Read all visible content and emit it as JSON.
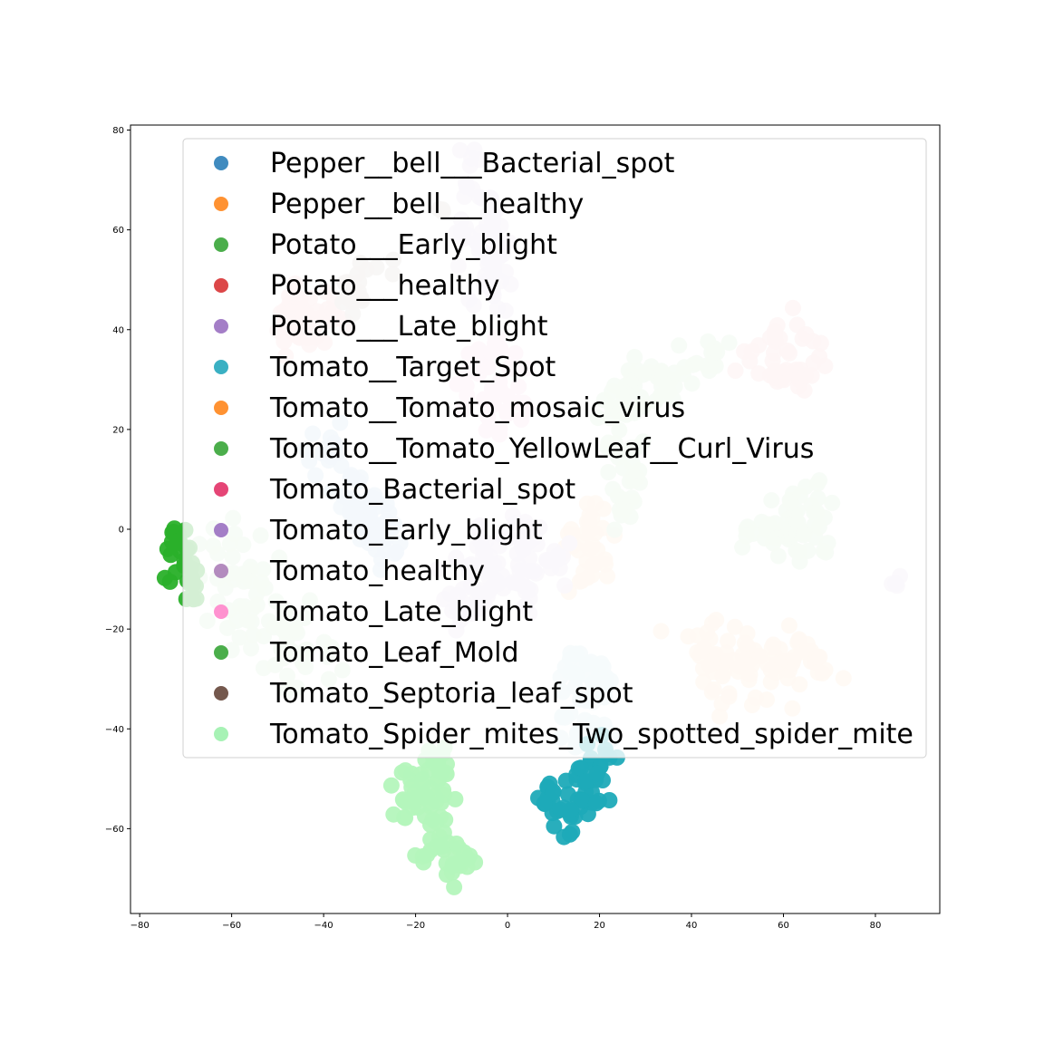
{
  "chart_data": {
    "type": "scatter",
    "title": "",
    "xlabel": "",
    "ylabel": "",
    "xlim": [
      -82,
      94
    ],
    "ylim": [
      -77,
      81
    ],
    "xticks": [
      -80,
      -60,
      -40,
      -20,
      0,
      20,
      40,
      60,
      80
    ],
    "yticks": [
      -60,
      -40,
      -20,
      0,
      20,
      40,
      60,
      80
    ],
    "xtick_labels": [
      "−80",
      "−60",
      "−40",
      "−20",
      "0",
      "20",
      "40",
      "60",
      "80"
    ],
    "ytick_labels": [
      "−60",
      "−40",
      "−20",
      "0",
      "20",
      "40",
      "60",
      "80"
    ],
    "grid": false,
    "legend_position": "upper-center",
    "legend": [
      {
        "name": "Pepper__bell___Bacterial_spot",
        "color": "#1f77b4"
      },
      {
        "name": "Pepper__bell___healthy",
        "color": "#ff7f0e"
      },
      {
        "name": "Potato___Early_blight",
        "color": "#2ca02c"
      },
      {
        "name": "Potato___healthy",
        "color": "#d62728"
      },
      {
        "name": "Potato___Late_blight",
        "color": "#9467bd"
      },
      {
        "name": "Tomato__Target_Spot",
        "color": "#17a2b8"
      },
      {
        "name": "Tomato__Tomato_mosaic_virus",
        "color": "#ff7f0e"
      },
      {
        "name": "Tomato__Tomato_YellowLeaf__Curl_Virus",
        "color": "#2ca02c"
      },
      {
        "name": "Tomato_Bacterial_spot",
        "color": "#e0245e"
      },
      {
        "name": "Tomato_Early_blight",
        "color": "#9467bd"
      },
      {
        "name": "Tomato_healthy",
        "color": "#a777b4"
      },
      {
        "name": "Tomato_Late_blight",
        "color": "#ff7fc8"
      },
      {
        "name": "Tomato_Leaf_Mold",
        "color": "#2ca02c"
      },
      {
        "name": "Tomato_Septoria_leaf_spot",
        "color": "#5c3b2e"
      },
      {
        "name": "Tomato_Spider_mites_Two_spotted_spider_mite",
        "color": "#98f0a8"
      }
    ],
    "clusters": [
      {
        "color": "#c6dcec",
        "alpha": 0.9,
        "n": 70,
        "seed": 1,
        "points": [
          [
            -40,
            15
          ],
          [
            -36,
            12
          ],
          [
            -33,
            7
          ],
          [
            -31,
            3
          ],
          [
            -29,
            0
          ],
          [
            -27,
            -3
          ]
        ],
        "spread": [
          2.5,
          2.5
        ]
      },
      {
        "color": "#ffe0c4",
        "alpha": 0.9,
        "n": 90,
        "seed": 2,
        "points": [
          [
            44,
            -22
          ],
          [
            48,
            -27
          ],
          [
            53,
            -25
          ],
          [
            58,
            -28
          ],
          [
            62,
            -25
          ],
          [
            66,
            -28
          ],
          [
            48,
            -32
          ]
        ],
        "spread": [
          3.5,
          3.0
        ]
      },
      {
        "color": "#ffe0c4",
        "alpha": 0.9,
        "n": 35,
        "seed": 3,
        "points": [
          [
            14,
            -3
          ],
          [
            18,
            -5
          ],
          [
            20,
            -8
          ],
          [
            18,
            2
          ],
          [
            22,
            0
          ],
          [
            16,
            -10
          ]
        ],
        "spread": [
          2.2,
          2.2
        ]
      },
      {
        "color": "#d4ecd0",
        "alpha": 0.9,
        "n": 80,
        "seed": 4,
        "points": [
          [
            -68,
            -2
          ],
          [
            -63,
            -8
          ],
          [
            -58,
            -5
          ],
          [
            -55,
            -14
          ],
          [
            -50,
            -18
          ],
          [
            -46,
            -24
          ],
          [
            -40,
            -24
          ],
          [
            -48,
            -28
          ],
          [
            -56,
            -22
          ]
        ],
        "spread": [
          3.5,
          3.5
        ]
      },
      {
        "color": "#d4ecd0",
        "alpha": 0.9,
        "n": 90,
        "seed": 5,
        "points": [
          [
            22,
            22
          ],
          [
            25,
            26
          ],
          [
            28,
            30
          ],
          [
            33,
            31
          ],
          [
            38,
            32
          ],
          [
            44,
            33
          ],
          [
            26,
            14
          ],
          [
            27,
            8
          ],
          [
            24,
            4
          ]
        ],
        "spread": [
          2.6,
          2.6
        ]
      },
      {
        "color": "#d4ecd0",
        "alpha": 0.9,
        "n": 55,
        "seed": 6,
        "points": [
          [
            58,
            0
          ],
          [
            63,
            2
          ],
          [
            66,
            6
          ],
          [
            67,
            0
          ],
          [
            62,
            -3
          ],
          [
            54,
            -1
          ]
        ],
        "spread": [
          2.8,
          2.8
        ]
      },
      {
        "color": "#f6cfd0",
        "alpha": 0.9,
        "n": 55,
        "seed": 7,
        "points": [
          [
            -48,
            42
          ],
          [
            -45,
            38
          ],
          [
            -43,
            45
          ],
          [
            -38,
            43
          ],
          [
            -46,
            40
          ]
        ],
        "spread": [
          2.5,
          2.5
        ]
      },
      {
        "color": "#f6cfd0",
        "alpha": 0.9,
        "n": 45,
        "seed": 8,
        "points": [
          [
            52,
            34
          ],
          [
            56,
            37
          ],
          [
            60,
            34
          ],
          [
            64,
            38
          ],
          [
            66,
            32
          ],
          [
            60,
            31
          ]
        ],
        "spread": [
          2.2,
          2.0
        ]
      },
      {
        "color": "#e6dcee",
        "alpha": 0.9,
        "n": 60,
        "seed": 9,
        "points": [
          [
            -8,
            72
          ],
          [
            -6,
            64
          ],
          [
            -4,
            56
          ],
          [
            -2,
            50
          ],
          [
            -6,
            60
          ],
          [
            -3,
            45
          ]
        ],
        "spread": [
          2.3,
          2.5
        ]
      },
      {
        "color": "#e6dcee",
        "alpha": 0.9,
        "n": 95,
        "seed": 10,
        "points": [
          [
            -10,
            -8
          ],
          [
            -6,
            -4
          ],
          [
            -3,
            -10
          ],
          [
            0,
            -7
          ],
          [
            4,
            -12
          ],
          [
            6,
            -6
          ],
          [
            -12,
            -14
          ],
          [
            -8,
            -16
          ],
          [
            2,
            0
          ],
          [
            8,
            -8
          ]
        ],
        "spread": [
          3.0,
          3.0
        ]
      },
      {
        "color": "#e6dcee",
        "alpha": 0.9,
        "n": 4,
        "seed": 11,
        "points": [
          [
            85,
            -11
          ]
        ],
        "spread": [
          0.6,
          0.6
        ]
      },
      {
        "color": "#d2eaec",
        "alpha": 0.9,
        "n": 60,
        "seed": 12,
        "points": [
          [
            12,
            -28
          ],
          [
            16,
            -26
          ],
          [
            20,
            -30
          ],
          [
            18,
            -36
          ],
          [
            14,
            -34
          ],
          [
            16,
            -42
          ],
          [
            20,
            -44
          ]
        ],
        "spread": [
          2.2,
          2.4
        ]
      },
      {
        "color": "#fbd8ea",
        "alpha": 0.9,
        "n": 45,
        "seed": 13,
        "points": [
          [
            -8,
            32
          ],
          [
            -4,
            36
          ],
          [
            -2,
            30
          ],
          [
            2,
            34
          ],
          [
            -6,
            26
          ],
          [
            -2,
            22
          ],
          [
            2,
            26
          ]
        ],
        "spread": [
          2.2,
          2.2
        ]
      },
      {
        "color": "#1eaab8",
        "alpha": 0.95,
        "n": 60,
        "seed": 14,
        "points": [
          [
            10,
            -53
          ],
          [
            14,
            -50
          ],
          [
            17,
            -54
          ],
          [
            20,
            -48
          ],
          [
            22,
            -46
          ],
          [
            13,
            -58
          ],
          [
            11,
            -60
          ],
          [
            18,
            -52
          ]
        ],
        "spread": [
          1.8,
          1.8
        ]
      },
      {
        "color": "#2ab02a",
        "alpha": 0.95,
        "n": 30,
        "seed": 15,
        "points": [
          [
            -72,
            -3
          ],
          [
            -70,
            -7
          ],
          [
            -73,
            -10
          ],
          [
            -69,
            -12
          ],
          [
            -71,
            -1
          ]
        ],
        "spread": [
          1.3,
          2.0
        ]
      },
      {
        "color": "#b4f5bc",
        "alpha": 0.95,
        "n": 55,
        "seed": 16,
        "points": [
          [
            -22,
            -50
          ],
          [
            -18,
            -53
          ],
          [
            -14,
            -49
          ],
          [
            -17,
            -57
          ],
          [
            -21,
            -56
          ],
          [
            -16,
            -45
          ]
        ],
        "spread": [
          2.2,
          2.2
        ]
      },
      {
        "color": "#b4f5bc",
        "alpha": 0.95,
        "n": 30,
        "seed": 17,
        "points": [
          [
            -17,
            -65
          ],
          [
            -13,
            -68
          ],
          [
            -10,
            -66
          ],
          [
            -14,
            -63
          ]
        ],
        "spread": [
          1.8,
          1.5
        ]
      },
      {
        "color": "#d8d0cc",
        "alpha": 0.9,
        "n": 20,
        "seed": 18,
        "points": [
          [
            -35,
            48
          ],
          [
            -32,
            51
          ],
          [
            -29,
            53
          ],
          [
            -33,
            46
          ],
          [
            -26,
            52
          ]
        ],
        "spread": [
          1.6,
          1.5
        ]
      },
      {
        "color": "#d8d0cc",
        "alpha": 0.9,
        "n": 3,
        "seed": 19,
        "points": [
          [
            -14,
            64
          ]
        ],
        "spread": [
          0.6,
          0.6
        ]
      }
    ]
  }
}
